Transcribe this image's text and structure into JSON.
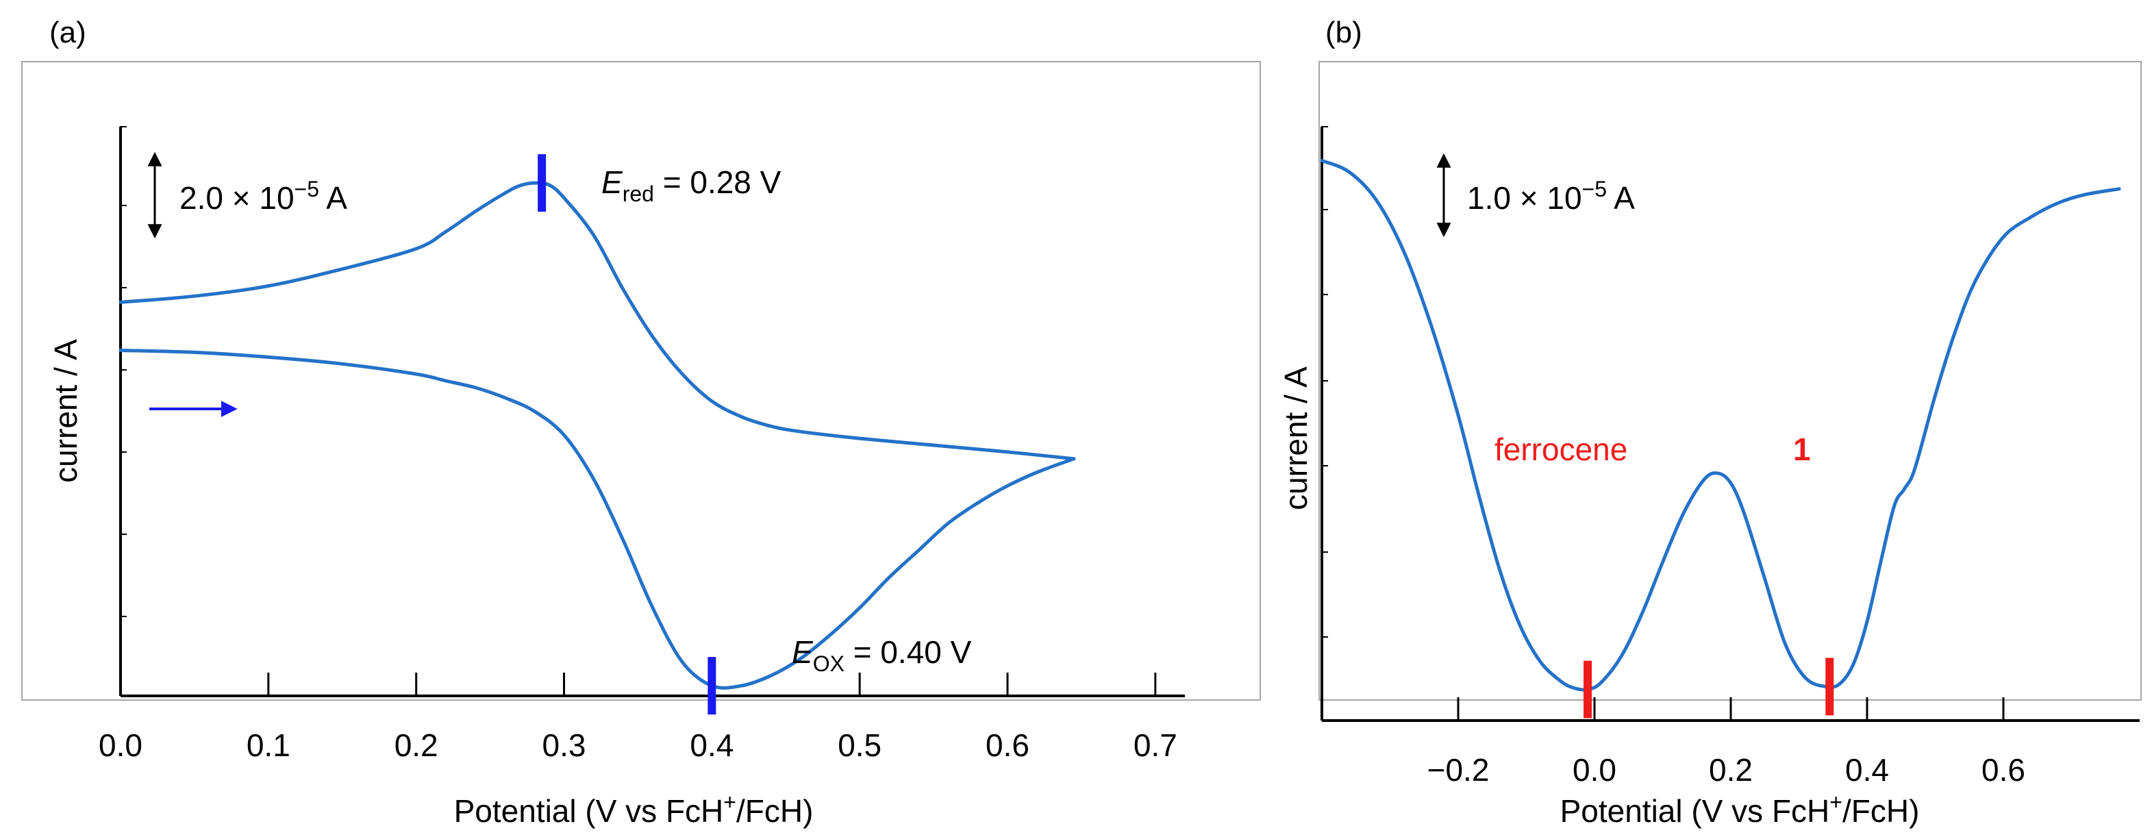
{
  "chart_data": [
    {
      "panel_label": "(a)",
      "type": "line",
      "title": "",
      "xlabel_parts": {
        "pre": "Potential (V vs FcH",
        "sup": "+",
        "post": "/FcH)"
      },
      "ylabel": "current / A",
      "xlim": [
        0.0,
        0.72
      ],
      "xticks": [
        "0.0",
        "0.1",
        "0.2",
        "0.3",
        "0.4",
        "0.5",
        "0.6",
        "0.7"
      ],
      "xtick_values": [
        0.0,
        0.1,
        0.2,
        0.3,
        0.4,
        0.5,
        0.6,
        0.7
      ],
      "ylim": [
        -6.8,
        1.6
      ],
      "y_units": "1e-5 A",
      "scale_bar": {
        "value": 2.0,
        "pre": "2.0 × 10",
        "sup": "−5",
        "post": " A"
      },
      "series": [
        {
          "name": "CV",
          "color": "#2472c8",
          "x": [
            0.645,
            0.62,
            0.6,
            0.58,
            0.56,
            0.54,
            0.52,
            0.5,
            0.48,
            0.46,
            0.44,
            0.42,
            0.4,
            0.38,
            0.36,
            0.34,
            0.32,
            0.3,
            0.28,
            0.26,
            0.24,
            0.22,
            0.2,
            0.15,
            0.1,
            0.05,
            0.0
          ],
          "y": [
            -3.3,
            -3.5,
            -3.7,
            -3.95,
            -4.25,
            -4.65,
            -5.05,
            -5.5,
            -5.9,
            -6.25,
            -6.5,
            -6.65,
            -6.65,
            -6.3,
            -5.5,
            -4.5,
            -3.6,
            -2.95,
            -2.6,
            -2.4,
            -2.25,
            -2.15,
            -2.05,
            -1.9,
            -1.8,
            -1.73,
            -1.7
          ]
        },
        {
          "name": "CV-return",
          "color": "#2472c8",
          "x": [
            0.0,
            0.05,
            0.1,
            0.15,
            0.2,
            0.22,
            0.24,
            0.26,
            0.27,
            0.28,
            0.29,
            0.3,
            0.32,
            0.34,
            0.36,
            0.38,
            0.4,
            0.42,
            0.44,
            0.46,
            0.5,
            0.55,
            0.6,
            0.645
          ],
          "y": [
            -0.99,
            -0.9,
            -0.75,
            -0.5,
            -0.2,
            0.05,
            0.35,
            0.62,
            0.73,
            0.77,
            0.74,
            0.55,
            0.0,
            -0.8,
            -1.5,
            -2.05,
            -2.45,
            -2.68,
            -2.82,
            -2.9,
            -3.0,
            -3.1,
            -3.2,
            -3.3
          ]
        }
      ],
      "annotations": [
        {
          "label_main": "E",
          "label_sub": "red",
          "label_rest": " = 0.28 V",
          "x": 0.285,
          "y": 0.77
        },
        {
          "label_main": "E",
          "label_sub": "OX",
          "label_rest": " = 0.40 V",
          "x": 0.4,
          "y": -6.65
        }
      ],
      "scan_direction": "positive"
    },
    {
      "panel_label": "(b)",
      "type": "line",
      "title": "",
      "xlabel_parts": {
        "pre": "Potential (V vs FcH",
        "sup": "+",
        "post": "/FcH)"
      },
      "ylabel": "current / A",
      "xlim": [
        -0.4,
        0.8
      ],
      "xticks": [
        "−0.2",
        "0.0",
        "0.2",
        "0.4",
        "0.6"
      ],
      "xtick_values": [
        -0.2,
        0.0,
        0.2,
        0.4,
        0.6
      ],
      "ylim": [
        0,
        21.0
      ],
      "y_units": "1e-5 A",
      "scale_bar": {
        "value": 1.0,
        "pre": "1.0 × 10",
        "sup": "−5",
        "post": " A"
      },
      "series": [
        {
          "name": "DPV",
          "color": "#2472c8",
          "x": [
            -0.4,
            -0.36,
            -0.32,
            -0.28,
            -0.24,
            -0.2,
            -0.17,
            -0.14,
            -0.11,
            -0.08,
            -0.05,
            -0.03,
            -0.01,
            0.01,
            0.04,
            0.07,
            0.1,
            0.13,
            0.16,
            0.18,
            0.2,
            0.22,
            0.25,
            0.28,
            0.31,
            0.34,
            0.36,
            0.38,
            0.4,
            0.42,
            0.44,
            0.455,
            0.47,
            0.5,
            0.53,
            0.56,
            0.6,
            0.64,
            0.68,
            0.72,
            0.77
          ],
          "y": [
            19.8,
            19.4,
            18.4,
            16.6,
            14.0,
            10.8,
            8.0,
            5.4,
            3.4,
            2.1,
            1.4,
            1.15,
            1.1,
            1.35,
            2.3,
            3.8,
            5.6,
            7.3,
            8.5,
            8.75,
            8.4,
            7.3,
            5.0,
            2.7,
            1.5,
            1.2,
            1.3,
            2.0,
            3.5,
            5.6,
            7.6,
            8.2,
            8.9,
            11.5,
            13.8,
            15.6,
            17.1,
            17.8,
            18.3,
            18.6,
            18.8
          ]
        }
      ],
      "annotations": [
        {
          "label": "ferrocene",
          "color": "#ee1c1c",
          "x": -0.01,
          "y": 1.1
        },
        {
          "label": "1",
          "color": "#ee1c1c",
          "x": 0.345,
          "y": 1.2
        }
      ]
    }
  ]
}
